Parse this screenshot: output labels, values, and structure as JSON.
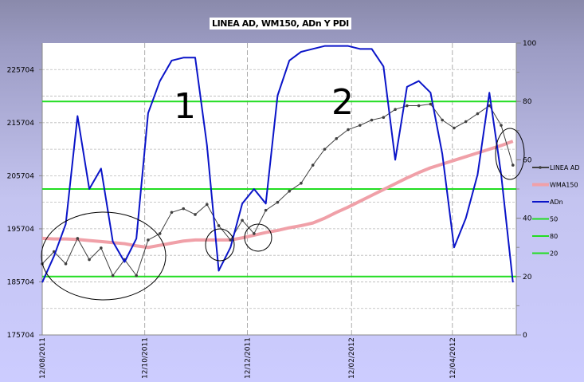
{
  "chart_data": {
    "type": "line",
    "title": "LINEA AD, WM150, ADn Y PDI",
    "x_tick_labels": [
      "12/08/2011",
      "12/10/2011",
      "12/12/2011",
      "12/02/2012",
      "12/04/2012"
    ],
    "x_ticks": [
      "2011-08-12",
      "2011-10-12",
      "2011-12-12",
      "2012-02-12",
      "2012-04-12"
    ],
    "x_range": [
      "2011-08-12",
      "2012-05-20"
    ],
    "y_left": {
      "range": [
        175704,
        230704
      ],
      "tick_labels": [
        "175704",
        "185704",
        "195704",
        "205704",
        "215704",
        "225704"
      ]
    },
    "y_right": {
      "range": [
        0,
        100
      ],
      "tick_labels": [
        "0",
        "20",
        "40",
        "60",
        "80",
        "100"
      ]
    },
    "grid": true,
    "legend_position": "right",
    "annotations": [
      "1",
      "2"
    ],
    "dates": [
      "2011-08-12",
      "2011-08-19",
      "2011-08-26",
      "2011-09-02",
      "2011-09-09",
      "2011-09-16",
      "2011-09-23",
      "2011-09-30",
      "2011-10-07",
      "2011-10-14",
      "2011-10-21",
      "2011-10-28",
      "2011-11-04",
      "2011-11-11",
      "2011-11-18",
      "2011-11-25",
      "2011-12-02",
      "2011-12-09",
      "2011-12-16",
      "2011-12-23",
      "2011-12-30",
      "2012-01-06",
      "2012-01-13",
      "2012-01-20",
      "2012-01-27",
      "2012-02-03",
      "2012-02-10",
      "2012-02-17",
      "2012-02-24",
      "2012-03-02",
      "2012-03-09",
      "2012-03-16",
      "2012-03-23",
      "2012-03-30",
      "2012-04-06",
      "2012-04-13",
      "2012-04-20",
      "2012-04-27",
      "2012-05-04",
      "2012-05-11",
      "2012-05-18"
    ],
    "series": [
      {
        "name": "LINEA AD",
        "axis": "left",
        "color": "#404040",
        "markers": true,
        "values": [
          189100,
          191400,
          189100,
          193900,
          189900,
          192100,
          186900,
          189900,
          186900,
          193600,
          194800,
          198800,
          199500,
          198400,
          200300,
          196300,
          193600,
          197300,
          194800,
          199200,
          200700,
          202800,
          204300,
          207700,
          210700,
          212700,
          214400,
          215200,
          216200,
          216700,
          218200,
          218900,
          218900,
          219200,
          216200,
          214700,
          215900,
          217400,
          218900,
          215200,
          207700
        ]
      },
      {
        "name": "WMA150",
        "axis": "left",
        "color": "#f0a0a8",
        "values": [
          193900,
          193800,
          193800,
          193700,
          193500,
          193300,
          193100,
          192900,
          192500,
          192200,
          192600,
          193000,
          193400,
          193600,
          193600,
          193600,
          193600,
          194000,
          194500,
          195000,
          195400,
          195900,
          196300,
          196800,
          197700,
          198800,
          199800,
          200900,
          202000,
          203100,
          204200,
          205300,
          206300,
          207200,
          207900,
          208600,
          209300,
          210000,
          210700,
          211400,
          212200
        ]
      },
      {
        "name": "ADn",
        "axis": "right",
        "color": "#0a14c8",
        "values": [
          18,
          27,
          38,
          75,
          50,
          57,
          32,
          25,
          33,
          76,
          87,
          94,
          95,
          95,
          65,
          22,
          30,
          45,
          50,
          45,
          82,
          94,
          97,
          98,
          99,
          99,
          99,
          98,
          98,
          92,
          60,
          85,
          87,
          83,
          62,
          30,
          40,
          55,
          83,
          55,
          18
        ]
      },
      {
        "name": "50",
        "axis": "right",
        "color": "#22dd22",
        "constant": 50
      },
      {
        "name": "80",
        "axis": "right",
        "color": "#22dd22",
        "constant": 80
      },
      {
        "name": "20",
        "axis": "right",
        "color": "#22dd22",
        "constant": 20
      }
    ]
  }
}
